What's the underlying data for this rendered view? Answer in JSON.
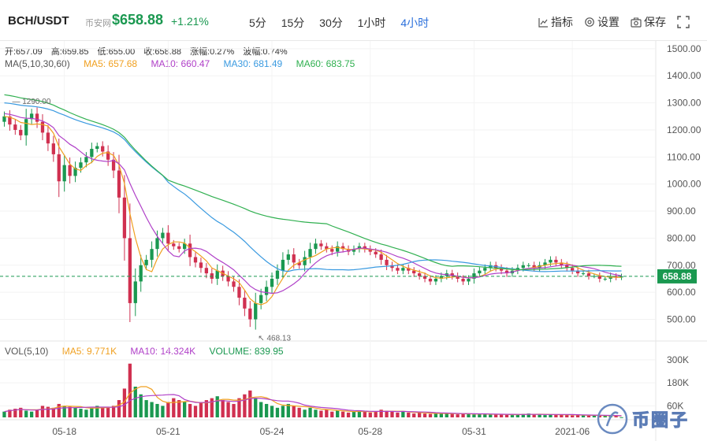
{
  "header": {
    "pair": "BCH/USDT",
    "site": "币安网",
    "price": "$658.88",
    "change": "+1.21%",
    "intervals": [
      "5分",
      "15分",
      "30分",
      "1小时",
      "4小时"
    ],
    "active_interval": "4小时",
    "tools": {
      "indicators": "指标",
      "settings": "设置",
      "save": "保存"
    }
  },
  "ohlc": {
    "open": "开:657.09",
    "high": "高:659.85",
    "low": "低:655.00",
    "close": "收:658.88",
    "change": "涨幅:0.27%",
    "amplitude": "波幅:0.74%"
  },
  "ma_legend": {
    "label": "MA(5,10,30,60)",
    "ma5": "MA5: 657.68",
    "ma10": "MA10: 660.47",
    "ma30": "MA30: 681.49",
    "ma60": "MA60: 683.75"
  },
  "vol_legend": {
    "label": "VOL(5,10)",
    "ma5": "MA5: 9.771K",
    "ma10": "MA10: 14.324K",
    "volume": "VOLUME: 839.95"
  },
  "colors": {
    "up": "#1a9850",
    "down": "#d03050",
    "ma5": "#f0a020",
    "ma10": "#b040c8",
    "ma30": "#3a9ae0",
    "ma60": "#30b050",
    "price_tag": "#1a9850"
  },
  "watermark": {
    "text": "币圈子"
  },
  "chart_data": {
    "type": "candlestick",
    "price_axis": {
      "ticks": [
        1500,
        1400,
        1300,
        1200,
        1100,
        1000,
        900,
        800,
        700,
        600,
        500
      ],
      "tick_labels": [
        "1500.00",
        "1400.00",
        "1300.00",
        "1200.00",
        "1100.00",
        "1000.00",
        "900.00",
        "800.00",
        "700.00",
        "600.00",
        "500.00"
      ],
      "range": [
        420,
        1520
      ]
    },
    "volume_axis": {
      "ticks": [
        300000,
        180000,
        60000
      ],
      "tick_labels": [
        "300K",
        "180K",
        "60K"
      ],
      "range": [
        0,
        320000
      ]
    },
    "x_labels": [
      {
        "label": "05-18",
        "index": 11
      },
      {
        "label": "05-21",
        "index": 30
      },
      {
        "label": "05-24",
        "index": 49
      },
      {
        "label": "05-28",
        "index": 67
      },
      {
        "label": "05-31",
        "index": 86
      },
      {
        "label": "2021-06",
        "index": 104
      }
    ],
    "last_price": 658.88,
    "last_price_label": "658.88",
    "annotations": [
      {
        "text": "1290.00",
        "index": 0,
        "value": 1290
      },
      {
        "text": "468.13",
        "index": 45,
        "value": 468.13
      }
    ],
    "closes": [
      1250,
      1220,
      1200,
      1180,
      1240,
      1260,
      1230,
      1190,
      1150,
      1110,
      1010,
      1070,
      1030,
      1060,
      1080,
      1100,
      1130,
      1140,
      1120,
      1090,
      1050,
      950,
      800,
      560,
      640,
      700,
      720,
      760,
      800,
      820,
      780,
      770,
      760,
      780,
      730,
      710,
      690,
      670,
      650,
      680,
      660,
      640,
      620,
      580,
      540,
      500,
      560,
      590,
      620,
      650,
      680,
      720,
      740,
      710,
      700,
      730,
      760,
      780,
      770,
      760,
      750,
      770,
      760,
      750,
      760,
      770,
      760,
      750,
      740,
      720,
      700,
      690,
      680,
      690,
      680,
      670,
      660,
      650,
      640,
      650,
      660,
      670,
      660,
      650,
      640,
      650,
      670,
      680,
      690,
      700,
      690,
      680,
      670,
      680,
      690,
      700,
      700,
      690,
      700,
      710,
      720,
      710,
      700,
      690,
      680,
      670,
      670,
      660,
      660,
      650,
      650,
      660,
      655,
      658.88
    ],
    "volumes": [
      30000,
      40000,
      45000,
      50000,
      35000,
      30000,
      40000,
      60000,
      55000,
      50000,
      70000,
      60000,
      55000,
      50000,
      45000,
      40000,
      50000,
      60000,
      55000,
      50000,
      60000,
      90000,
      150000,
      280000,
      160000,
      120000,
      90000,
      80000,
      70000,
      60000,
      80000,
      100000,
      90000,
      80000,
      70000,
      60000,
      80000,
      90000,
      100000,
      110000,
      90000,
      80000,
      70000,
      100000,
      120000,
      140000,
      100000,
      80000,
      70000,
      60000,
      50000,
      60000,
      70000,
      60000,
      50000,
      40000,
      50000,
      40000,
      35000,
      40000,
      30000,
      35000,
      30000,
      25000,
      30000,
      35000,
      30000,
      25000,
      30000,
      40000,
      35000,
      30000,
      25000,
      30000,
      25000,
      20000,
      25000,
      20000,
      18000,
      20000,
      22000,
      20000,
      18000,
      16000,
      18000,
      20000,
      15000,
      18000,
      16000,
      14000,
      15000,
      16000,
      14000,
      12000,
      15000,
      18000,
      20000,
      16000,
      14000,
      12000,
      14000,
      16000,
      14000,
      12000,
      10000,
      12000,
      10000,
      9000,
      10000,
      9000,
      8000,
      9000,
      8000,
      840
    ]
  }
}
